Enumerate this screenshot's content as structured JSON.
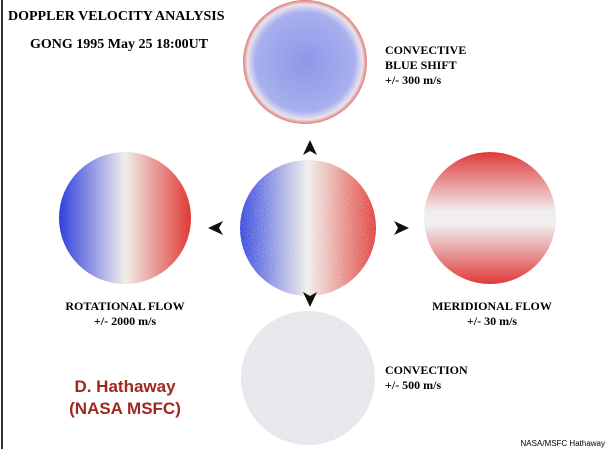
{
  "header": {
    "title": "DOPPLER VELOCITY ANALYSIS",
    "subtitle": "GONG 1995 May 25 18:00UT"
  },
  "panels": [
    {
      "lines": [
        "CONVECTIVE",
        "BLUE SHIFT"
      ],
      "range": "+/- 300 m/s"
    },
    {
      "lines": [
        "ROTATIONAL FLOW"
      ],
      "range": "+/- 2000 m/s"
    },
    {
      "lines": [
        "MERIDIONAL FLOW"
      ],
      "range": "+/- 30 m/s"
    },
    {
      "lines": [
        "CONVECTION"
      ],
      "range": "+/- 500 m/s"
    }
  ],
  "author": {
    "name": "D. Hathaway",
    "org": "(NASA MSFC)"
  },
  "credit": "NASA/MSFC Hathaway"
}
